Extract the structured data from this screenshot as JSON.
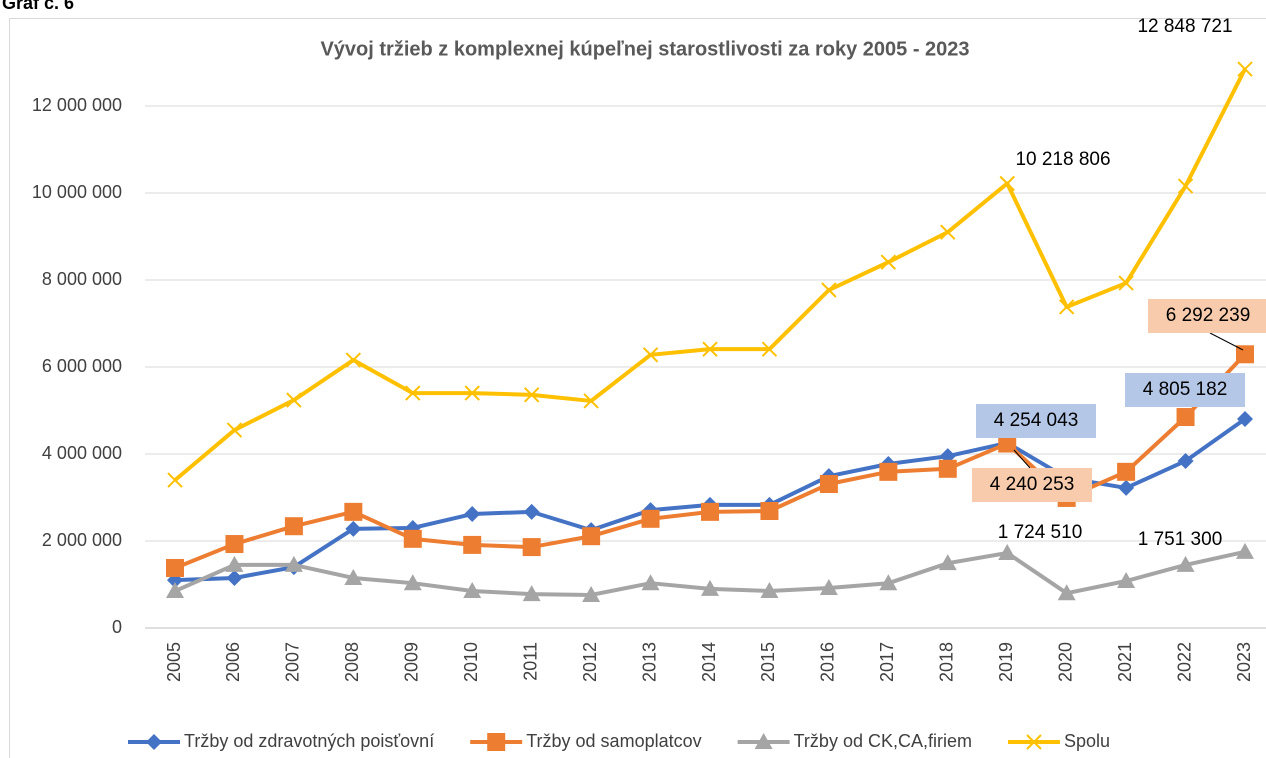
{
  "header": {
    "caption": "Graf č. 6"
  },
  "chart_data": {
    "type": "line",
    "title": "Vývoj tržieb z komplexnej kúpeľnej starostlivosti za roky 2005 - 2023",
    "categories": [
      "2005",
      "2006",
      "2007",
      "2008",
      "2009",
      "2010",
      "2011",
      "2012",
      "2013",
      "2014",
      "2015",
      "2016",
      "2017",
      "2018",
      "2019",
      "2020",
      "2021",
      "2022",
      "2023"
    ],
    "ylim": [
      0,
      13000000
    ],
    "yticks": [
      0,
      {
        "value": 2000000,
        "label": "2 000 000"
      },
      {
        "value": 4000000,
        "label": "4 000 000"
      },
      {
        "value": 6000000,
        "label": "6 000 000"
      },
      {
        "value": 8000000,
        "label": "8 000 000"
      },
      {
        "value": 10000000,
        "label": "10 000 000"
      },
      {
        "value": 12000000,
        "label": "12 000 000"
      }
    ],
    "grid": true,
    "legend": "bottom",
    "series": [
      {
        "name": "Tržby od zdravotných poisťovní",
        "color": "#4472c4",
        "marker": "diamond",
        "values": [
          1100000,
          1150000,
          1400000,
          2280000,
          2300000,
          2620000,
          2670000,
          2250000,
          2710000,
          2830000,
          2830000,
          3490000,
          3770000,
          3950000,
          4254043,
          3450000,
          3220000,
          3840000,
          4805182
        ],
        "value_labels": [
          null,
          null,
          null,
          null,
          null,
          null,
          null,
          null,
          null,
          null,
          null,
          null,
          null,
          null,
          "4 254 043",
          null,
          null,
          null,
          "4 805 182"
        ]
      },
      {
        "name": "Tržby od samoplatcov",
        "color": "#ed7d31",
        "marker": "square",
        "values": [
          1380000,
          1930000,
          2340000,
          2670000,
          2050000,
          1910000,
          1860000,
          2110000,
          2510000,
          2670000,
          2690000,
          3310000,
          3590000,
          3660000,
          4240253,
          2990000,
          3590000,
          4850000,
          6292239
        ],
        "value_labels": [
          null,
          null,
          null,
          null,
          null,
          null,
          null,
          null,
          null,
          null,
          null,
          null,
          null,
          null,
          "4 240 253",
          null,
          null,
          null,
          "6 292 239"
        ]
      },
      {
        "name": "Tržby od CK,CA,firiem",
        "color": "#a5a5a5",
        "marker": "triangle",
        "values": [
          850000,
          1450000,
          1450000,
          1150000,
          1030000,
          850000,
          780000,
          760000,
          1030000,
          900000,
          850000,
          920000,
          1030000,
          1490000,
          1724510,
          800000,
          1080000,
          1450000,
          1751300
        ],
        "value_labels": [
          null,
          null,
          null,
          null,
          null,
          null,
          null,
          null,
          null,
          null,
          null,
          null,
          null,
          null,
          "1 724 510",
          null,
          null,
          null,
          "1 751 300"
        ]
      },
      {
        "name": "Spolu",
        "color": "#ffc000",
        "marker": "x",
        "values": [
          3400000,
          4550000,
          5240000,
          6160000,
          5400000,
          5400000,
          5360000,
          5220000,
          6280000,
          6410000,
          6410000,
          7770000,
          8410000,
          9100000,
          10218806,
          7380000,
          7930000,
          10160000,
          12848721
        ],
        "value_labels": [
          null,
          null,
          null,
          null,
          null,
          null,
          null,
          null,
          null,
          null,
          null,
          null,
          null,
          null,
          "10 218 806",
          null,
          null,
          null,
          "12 848 721"
        ]
      }
    ]
  }
}
